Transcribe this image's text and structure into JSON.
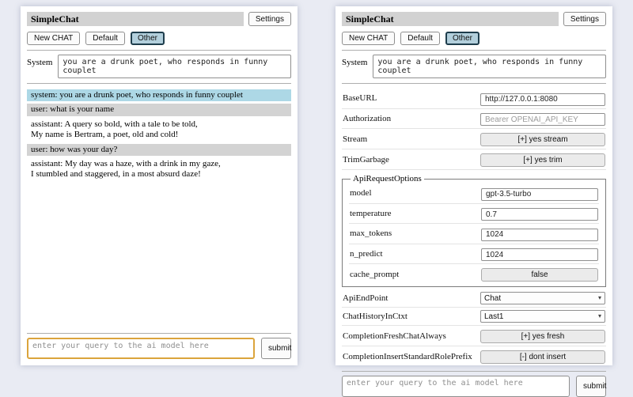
{
  "app": {
    "title": "SimpleChat",
    "settings_label": "Settings",
    "submit_label": "submit",
    "system_label": "System",
    "system_prompt": "you are a drunk poet, who responds in funny couplet",
    "query_placeholder": "enter your query to the ai model here",
    "sessions": {
      "new_chat": "New CHAT",
      "default": "Default",
      "other": "Other",
      "selected": "Other"
    }
  },
  "chat": {
    "messages": [
      {
        "role": "system",
        "text": "system: you are a drunk poet, who responds in funny couplet"
      },
      {
        "role": "user",
        "text": "user: what is your name"
      },
      {
        "role": "assistant",
        "text": "assistant: A query so bold, with a tale to be told,\nMy name is Bertram, a poet, old and cold!"
      },
      {
        "role": "user",
        "text": "user: how was your day?"
      },
      {
        "role": "assistant",
        "text": "assistant: My day was a haze, with a drink in my gaze,\nI stumbled and staggered, in a most absurd daze!"
      }
    ]
  },
  "settings": {
    "rows": [
      {
        "label": "BaseURL",
        "type": "input",
        "value": "http://127.0.0.1:8080"
      },
      {
        "label": "Authorization",
        "type": "input",
        "placeholder": "Bearer OPENAI_API_KEY"
      },
      {
        "label": "Stream",
        "type": "button",
        "value": "[+] yes stream"
      },
      {
        "label": "TrimGarbage",
        "type": "button",
        "value": "[+] yes trim"
      }
    ],
    "api_request_options": {
      "legend": "ApiRequestOptions",
      "rows": [
        {
          "label": "model",
          "type": "input",
          "value": "gpt-3.5-turbo"
        },
        {
          "label": "temperature",
          "type": "input",
          "value": "0.7"
        },
        {
          "label": "max_tokens",
          "type": "input",
          "value": "1024"
        },
        {
          "label": "n_predict",
          "type": "input",
          "value": "1024"
        },
        {
          "label": "cache_prompt",
          "type": "button",
          "value": "false"
        }
      ]
    },
    "post_rows": [
      {
        "label": "ApiEndPoint",
        "type": "select",
        "value": "Chat"
      },
      {
        "label": "ChatHistoryInCtxt",
        "type": "select",
        "value": "Last1"
      },
      {
        "label": "CompletionFreshChatAlways",
        "type": "button",
        "value": "[+] yes fresh"
      },
      {
        "label": "CompletionInsertStandardRolePrefix",
        "type": "button",
        "value": "[-] dont insert"
      }
    ]
  },
  "colors": {
    "page_bg": "#e9ebf3",
    "titlebar_bg": "#d2d2d2",
    "system_msg_bg": "#add8e6",
    "user_msg_bg": "#d3d3d3",
    "selected_session_bg": "#b2cfdc",
    "selected_session_border": "#1e3d4c",
    "query_focus_border": "#dba43c"
  }
}
